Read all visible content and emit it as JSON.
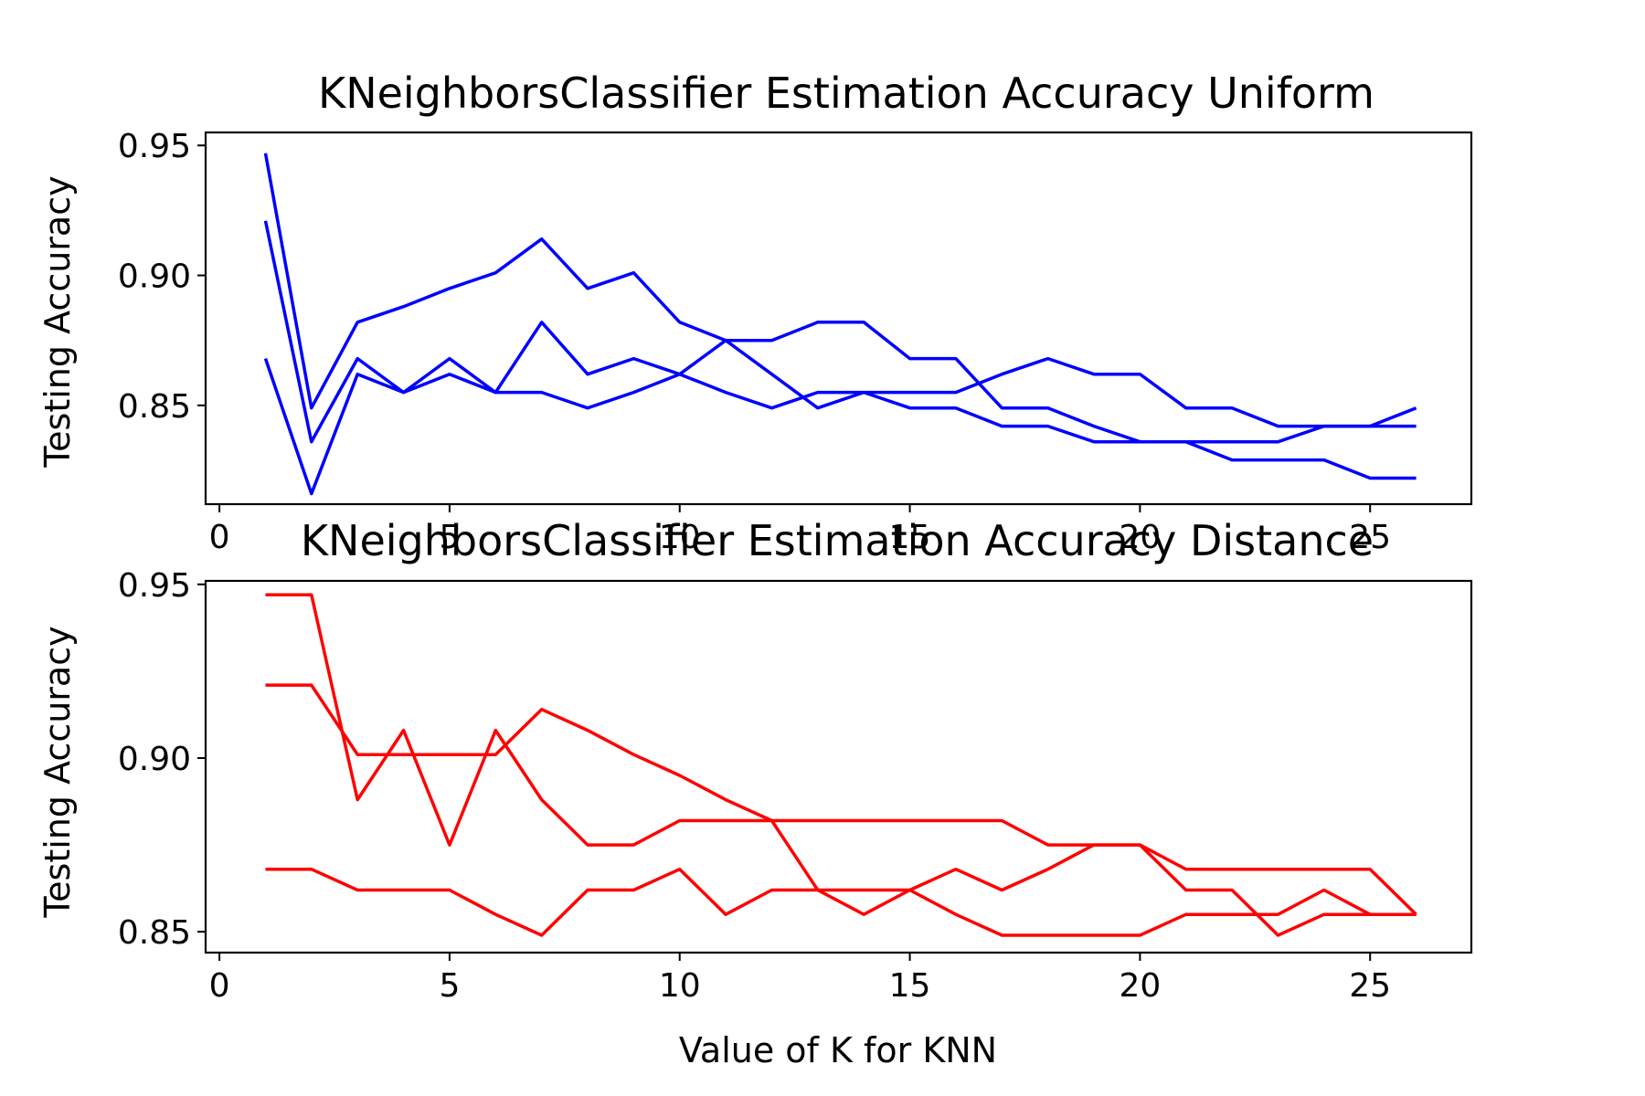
{
  "chart_data": [
    {
      "type": "line",
      "title": "KNeighborsClassifier Estimation Accuracy Uniform",
      "xlabel": "",
      "ylabel": "Testing Accuracy",
      "xlim": [
        -0.3,
        27.2
      ],
      "ylim": [
        0.812,
        0.955
      ],
      "xticks": [
        0,
        5,
        10,
        15,
        20,
        25
      ],
      "yticks": [
        0.85,
        0.9,
        0.95
      ],
      "ytick_labels": [
        "0.85",
        "0.90",
        "0.95"
      ],
      "color": "#0000ff",
      "grid": false,
      "series": [
        {
          "x": [
            1,
            2,
            3,
            4,
            5,
            6,
            7,
            8,
            9,
            10,
            11,
            12,
            13,
            14,
            15,
            16,
            17,
            18,
            19,
            20,
            21,
            22,
            23,
            24,
            25,
            26
          ],
          "values": [
            0.947,
            0.849,
            0.882,
            0.888,
            0.895,
            0.901,
            0.914,
            0.895,
            0.901,
            0.882,
            0.875,
            0.875,
            0.882,
            0.882,
            0.868,
            0.868,
            0.849,
            0.849,
            0.842,
            0.836,
            0.836,
            0.829,
            0.829,
            0.829,
            0.822,
            0.822
          ]
        },
        {
          "x": [
            1,
            2,
            3,
            4,
            5,
            6,
            7,
            8,
            9,
            10,
            11,
            12,
            13,
            14,
            15,
            16,
            17,
            18,
            19,
            20,
            21,
            22,
            23,
            24,
            25,
            26
          ],
          "values": [
            0.921,
            0.836,
            0.868,
            0.855,
            0.862,
            0.855,
            0.855,
            0.849,
            0.855,
            0.862,
            0.875,
            0.862,
            0.849,
            0.855,
            0.849,
            0.849,
            0.842,
            0.842,
            0.836,
            0.836,
            0.836,
            0.836,
            0.836,
            0.842,
            0.842,
            0.849
          ]
        },
        {
          "x": [
            1,
            2,
            3,
            4,
            5,
            6,
            7,
            8,
            9,
            10,
            11,
            12,
            13,
            14,
            15,
            16,
            17,
            18,
            19,
            20,
            21,
            22,
            23,
            24,
            25,
            26
          ],
          "values": [
            0.868,
            0.816,
            0.862,
            0.855,
            0.868,
            0.855,
            0.882,
            0.862,
            0.868,
            0.862,
            0.855,
            0.849,
            0.855,
            0.855,
            0.855,
            0.855,
            0.862,
            0.868,
            0.862,
            0.862,
            0.849,
            0.849,
            0.842,
            0.842,
            0.842,
            0.842
          ]
        }
      ]
    },
    {
      "type": "line",
      "title": "KNeighborsClassifier Estimation Accuracy Distance",
      "xlabel": "Value of K for KNN",
      "ylabel": "Testing Accuracy",
      "xlim": [
        -0.3,
        27.2
      ],
      "ylim": [
        0.844,
        0.951
      ],
      "xticks": [
        0,
        5,
        10,
        15,
        20,
        25
      ],
      "yticks": [
        0.85,
        0.9,
        0.95
      ],
      "ytick_labels": [
        "0.85",
        "0.90",
        "0.95"
      ],
      "color": "#ff0000",
      "grid": false,
      "series": [
        {
          "x": [
            1,
            2,
            3,
            4,
            5,
            6,
            7,
            8,
            9,
            10,
            11,
            12,
            13,
            14,
            15,
            16,
            17,
            18,
            19,
            20,
            21,
            22,
            23,
            24,
            25,
            26
          ],
          "values": [
            0.947,
            0.947,
            0.888,
            0.908,
            0.875,
            0.908,
            0.888,
            0.875,
            0.875,
            0.882,
            0.882,
            0.882,
            0.882,
            0.882,
            0.882,
            0.882,
            0.882,
            0.875,
            0.875,
            0.875,
            0.868,
            0.868,
            0.868,
            0.868,
            0.868,
            0.855
          ]
        },
        {
          "x": [
            1,
            2,
            3,
            4,
            5,
            6,
            7,
            8,
            9,
            10,
            11,
            12,
            13,
            14,
            15,
            16,
            17,
            18,
            19,
            20,
            21,
            22,
            23,
            24,
            25,
            26
          ],
          "values": [
            0.921,
            0.921,
            0.901,
            0.901,
            0.901,
            0.901,
            0.914,
            0.908,
            0.901,
            0.895,
            0.888,
            0.882,
            0.862,
            0.855,
            0.862,
            0.868,
            0.862,
            0.868,
            0.875,
            0.875,
            0.862,
            0.862,
            0.849,
            0.855,
            0.855,
            0.855
          ]
        },
        {
          "x": [
            1,
            2,
            3,
            4,
            5,
            6,
            7,
            8,
            9,
            10,
            11,
            12,
            13,
            14,
            15,
            16,
            17,
            18,
            19,
            20,
            21,
            22,
            23,
            24,
            25,
            26
          ],
          "values": [
            0.868,
            0.868,
            0.862,
            0.862,
            0.862,
            0.855,
            0.849,
            0.862,
            0.862,
            0.868,
            0.855,
            0.862,
            0.862,
            0.862,
            0.862,
            0.855,
            0.849,
            0.849,
            0.849,
            0.849,
            0.855,
            0.855,
            0.855,
            0.862,
            0.855,
            0.855
          ]
        }
      ]
    }
  ]
}
